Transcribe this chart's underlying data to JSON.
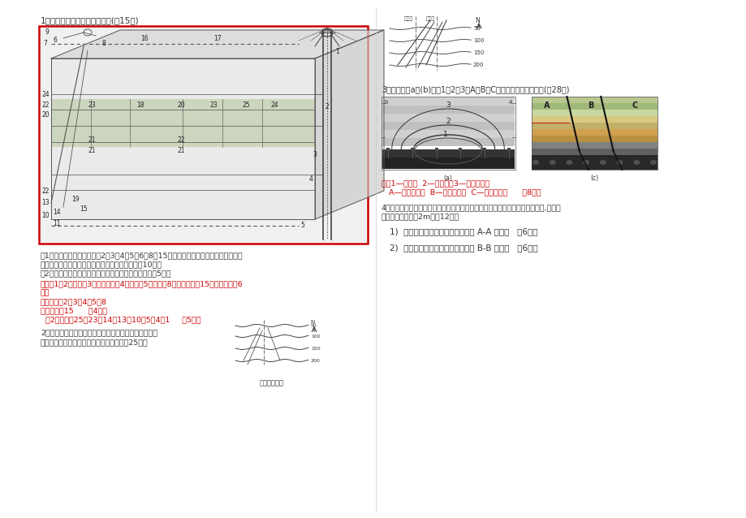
{
  "bg_color": "#ffffff",
  "page_width": 9.2,
  "page_height": 6.38,
  "dpi": 100,
  "left_col": {
    "title1": "1、某矿井生产系统示意图如下(全15分)",
    "box_color": "#cc0000",
    "q1_lines": [
      "（1）请写出此示意图中巻逓2、3、4、5、6、8、15的名称；指出上述巻道各属于哪种类",
      "型（开拓巻道、准备巻道、回采巻道）的巻道。（10分）",
      "（2）请对照示意图写出矿井右侧工作面的运煎系统。（5分）"
    ],
    "a1_lines": [
      "答：（1）2一副井、3一井底车场、4一石门、5一大巻、8一回风大巻、15一轨道上山（6",
      "分）",
      "开拓巻道：2、3、4、5、8",
      "准备巻道：15      （4分）",
      "  （2）运煎：25－23－14－13－10－5－4－1     （5分）"
    ],
    "title2a": "2、图为煎层的螈曲构造，请写出本图所示构造的完整名",
    "title2b": "称，在图上完整标出轴线位置和类别。（全25分）",
    "caption2": "煎层螈曲构造"
  },
  "right_col": {
    "title3": "3、写出图（a）(b)中，1、2、3和A、B、C分别表示什么区（带）(全28分)",
    "a3_lines": [
      "答：1—冒落带  2—裂隙带、3—弯曲正常带",
      "   A—煎壁支摔区  B—应力降低区  C—重新压实区      （8分）"
    ],
    "title4a": "4、如下平面图中，为某层煎的底板等高线。两条巻道均在煎层中，沿底板布置,巻道高",
    "title4b": "度和煎层厚度均为2m。（12分）",
    "q4_1": "1)  以平面图的比例在剖面图中画出 A-A 剖面图   （6分）",
    "q4_2": "2)  以平面图的比例在剖面图中画出 B-B 剖面图   （6分）"
  },
  "answer_color": "#cc0000",
  "text_color": "#333333"
}
